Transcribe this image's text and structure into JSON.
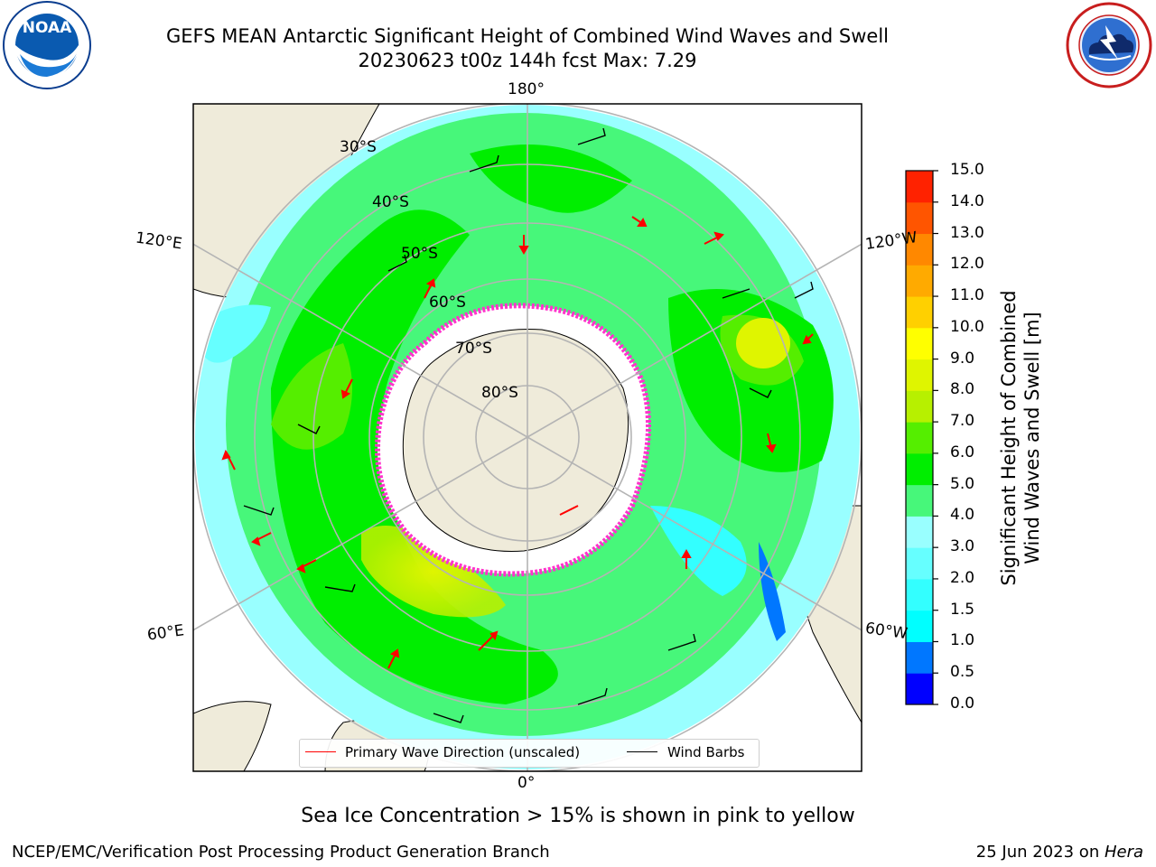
{
  "title": {
    "line1": "GEFS MEAN Antarctic Significant Height of Combined Wind Waves and Swell",
    "line2": "20230623 t00z 144h fcst   Max: 7.29"
  },
  "logos": {
    "left": {
      "name": "noaa-logo",
      "text": "NOAA",
      "ring_text": "NATIONAL OCEANIC AND ATMOSPHERIC ADMINISTRATION · U.S. DEPARTMENT OF COMMERCE"
    },
    "right": {
      "name": "nws-logo",
      "ring_text": "NATIONAL WEATHER SERVICE"
    }
  },
  "map": {
    "projection": "south-polar-stereographic",
    "longitude_labels": {
      "top": "180°",
      "bottom": "0°",
      "upper_left": "120°E",
      "lower_left": "60°E",
      "upper_right": "120°W",
      "lower_right": "60°W"
    },
    "latitude_labels": [
      "30°S",
      "40°S",
      "50°S",
      "60°S",
      "70°S",
      "80°S"
    ],
    "field_max": 7.29
  },
  "legend": {
    "wave_direction": "Primary Wave Direction (unscaled)",
    "wind_barbs": "Wind Barbs",
    "wave_color": "#ff0000",
    "barb_color": "#000000"
  },
  "colorbar": {
    "label_line1": "Significant Height of Combined",
    "label_line2": "Wind Waves and Swell [m]",
    "ticks": [
      "0.0",
      "0.5",
      "1.0",
      "1.5",
      "2.0",
      "3.0",
      "4.0",
      "5.0",
      "6.0",
      "7.0",
      "8.0",
      "9.0",
      "10.0",
      "11.0",
      "12.0",
      "13.0",
      "14.0",
      "15.0"
    ],
    "colors": [
      "#0000ff",
      "#0077ff",
      "#00ffff",
      "#33ffff",
      "#66ffff",
      "#99ffff",
      "#47f77a",
      "#00ee00",
      "#55ee00",
      "#b7f000",
      "#dff500",
      "#ffff00",
      "#ffd000",
      "#ffaa00",
      "#ff8800",
      "#ff5500",
      "#ff2200"
    ]
  },
  "notes": {
    "sea_ice": "Sea Ice Concentration > 15% is shown in pink to yellow",
    "footer_left": "NCEP/EMC/Verification Post Processing Product Generation Branch",
    "footer_date": "25 Jun 2023 on ",
    "footer_host": "Hera"
  },
  "colors": {
    "land": "#efebda",
    "antarctica": "#ffffff",
    "grid": "#b4b4b4",
    "ice_edge": "#ff33cc"
  }
}
